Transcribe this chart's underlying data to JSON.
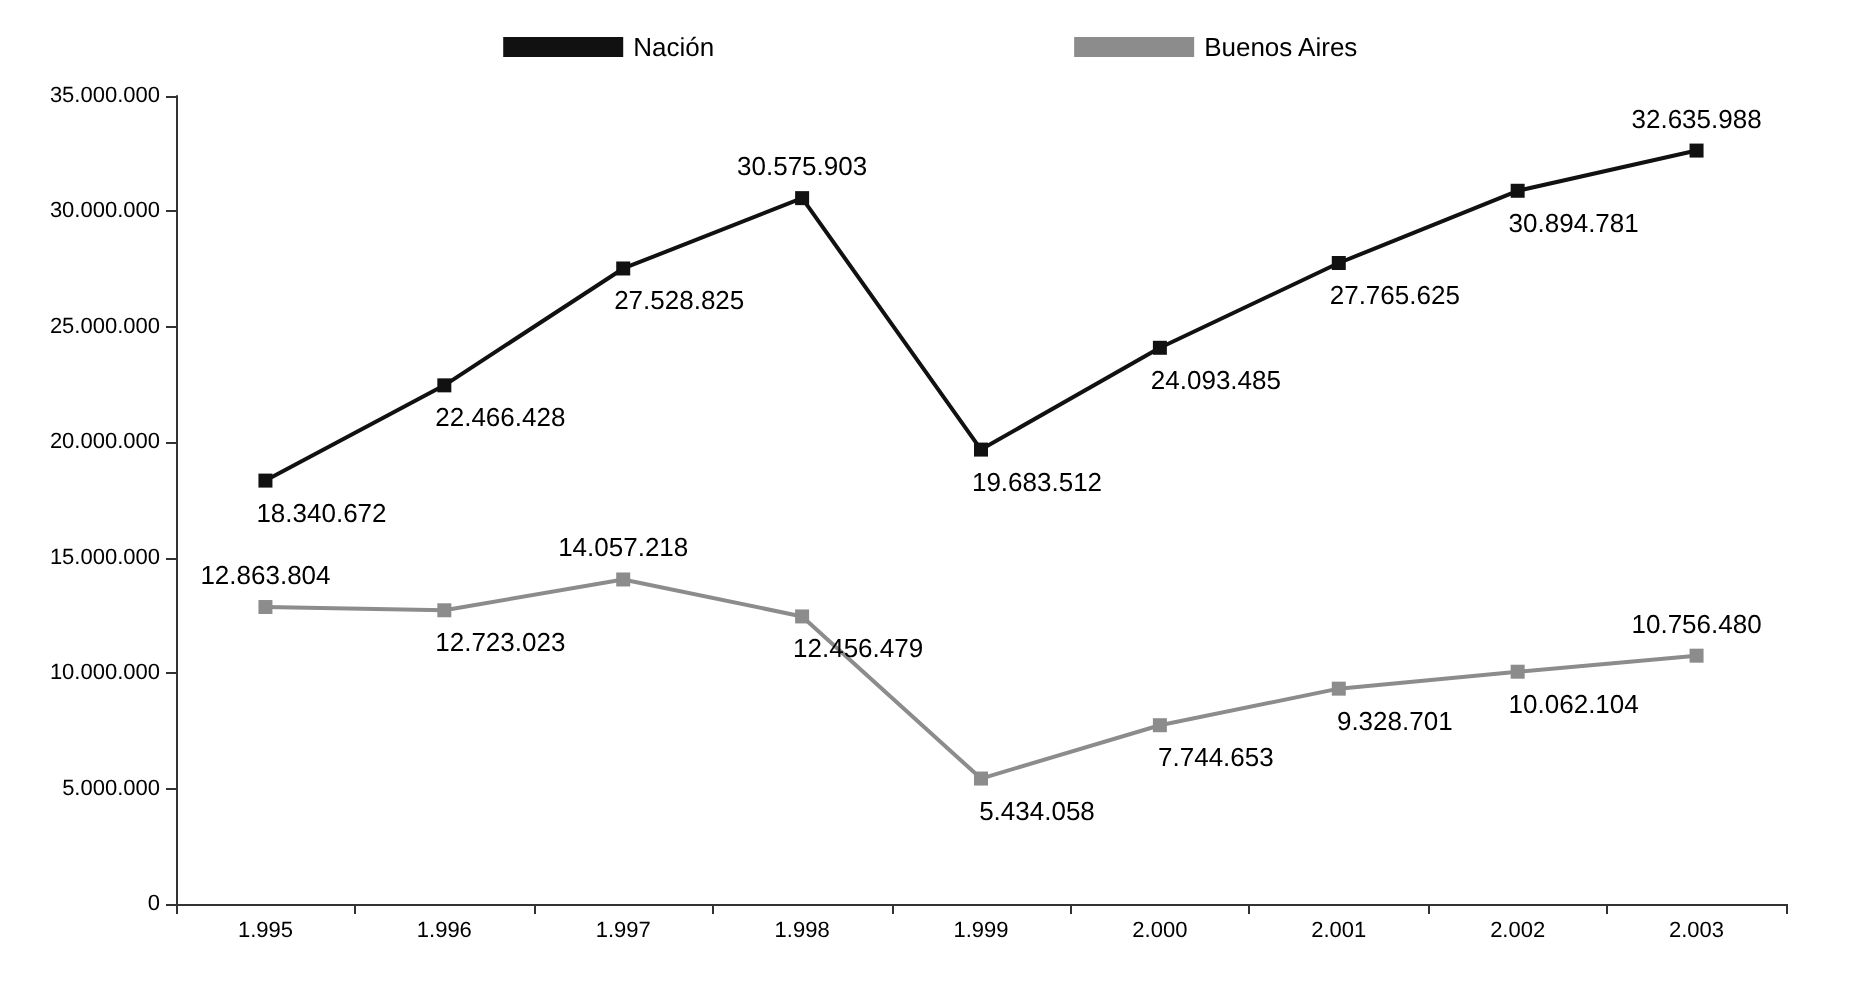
{
  "chart_data": {
    "type": "line",
    "categories": [
      "1.995",
      "1.996",
      "1.997",
      "1.998",
      "1.999",
      "2.000",
      "2.001",
      "2.002",
      "2.003"
    ],
    "series": [
      {
        "name": "Nación",
        "color": "#111111",
        "values": [
          18340672,
          22466428,
          27528825,
          30575903,
          19683512,
          24093485,
          27765625,
          30894781,
          32635988
        ],
        "value_labels": [
          "18.340.672",
          "22.466.428",
          "27.528.825",
          "30.575.903",
          "19.683.512",
          "24.093.485",
          "27.765.625",
          "30.894.781",
          "32.635.988"
        ]
      },
      {
        "name": "Buenos Aires",
        "color": "#8c8c8c",
        "values": [
          12863804,
          12723023,
          14057218,
          12456479,
          5434058,
          7744653,
          9328701,
          10062104,
          10756480
        ],
        "value_labels": [
          "12.863.804",
          "12.723.023",
          "14.057.218",
          "12.456.479",
          "5.434.058",
          "7.744.653",
          "9.328.701",
          "10.062.104",
          "10.756.480"
        ]
      }
    ],
    "ylim": [
      0,
      35000000
    ],
    "yticks": [
      {
        "value": 0,
        "label": "0"
      },
      {
        "value": 5000000,
        "label": "5.000.000"
      },
      {
        "value": 10000000,
        "label": "10.000.000"
      },
      {
        "value": 15000000,
        "label": "15.000.000"
      },
      {
        "value": 20000000,
        "label": "20.000.000"
      },
      {
        "value": 25000000,
        "label": "25.000.000"
      },
      {
        "value": 30000000,
        "label": "30.000.000"
      },
      {
        "value": 35000000,
        "label": "35.000.000"
      }
    ],
    "grid": false,
    "legend": "top",
    "marker": "square",
    "line_style": "solid"
  }
}
